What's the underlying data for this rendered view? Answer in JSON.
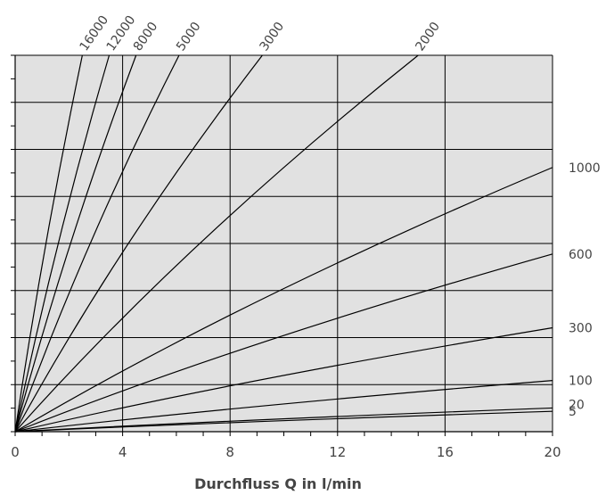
{
  "chart_data": {
    "type": "line",
    "title": "",
    "xlabel": "Durchfluss Q in l/min",
    "ylabel": "",
    "xlim": [
      0,
      20
    ],
    "xticks": [
      "0",
      "4",
      "8",
      "12",
      "16",
      "20"
    ],
    "grid": true,
    "background_color": "#e1e1e1",
    "line_color": "#000000",
    "series": [
      {
        "name": "16000",
        "label_position": "top",
        "points": [
          [
            0,
            0
          ],
          [
            2.5,
            1
          ]
        ]
      },
      {
        "name": "12000",
        "label_position": "top",
        "points": [
          [
            0,
            0
          ],
          [
            3.5,
            1
          ]
        ]
      },
      {
        "name": "8000",
        "label_position": "top",
        "points": [
          [
            0,
            0
          ],
          [
            4.5,
            1
          ]
        ]
      },
      {
        "name": "5000",
        "label_position": "top",
        "points": [
          [
            0,
            0
          ],
          [
            6.1,
            1
          ]
        ]
      },
      {
        "name": "3000",
        "label_position": "top",
        "points": [
          [
            0,
            0
          ],
          [
            9.2,
            1
          ]
        ]
      },
      {
        "name": "2000",
        "label_position": "top",
        "points": [
          [
            0,
            0
          ],
          [
            15,
            1
          ]
        ]
      },
      {
        "name": "1000",
        "label_position": "right",
        "points": [
          [
            0,
            0
          ],
          [
            20,
            0.702
          ]
        ]
      },
      {
        "name": "600",
        "label_position": "right",
        "points": [
          [
            0,
            0
          ],
          [
            20,
            0.472
          ]
        ]
      },
      {
        "name": "300",
        "label_position": "right",
        "points": [
          [
            0,
            0
          ],
          [
            20,
            0.276
          ]
        ]
      },
      {
        "name": "100",
        "label_position": "right",
        "points": [
          [
            0,
            0
          ],
          [
            20,
            0.136
          ]
        ]
      },
      {
        "name": "20",
        "label_position": "right",
        "points": [
          [
            0,
            0
          ],
          [
            20,
            0.063
          ]
        ]
      },
      {
        "name": "5",
        "label_position": "right",
        "points": [
          [
            0,
            0
          ],
          [
            20,
            0.054
          ]
        ]
      }
    ]
  }
}
